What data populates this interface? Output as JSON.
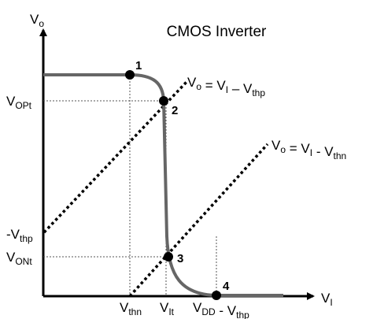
{
  "title": "CMOS Inverter",
  "y_axis_label": {
    "main": "V",
    "sub": "o"
  },
  "x_axis_label": {
    "main": "V",
    "sub": "I"
  },
  "points": [
    "1",
    "2",
    "3",
    "4"
  ],
  "y_labels": [
    [
      {
        "main": "V",
        "sub": "OPt"
      }
    ],
    [
      {
        "main": "-V",
        "sub": "thp"
      }
    ],
    [
      {
        "main": "V",
        "sub": "ONt"
      }
    ]
  ],
  "x_labels": [
    [
      {
        "main": "V",
        "sub": "thn"
      }
    ],
    [
      {
        "main": "V",
        "sub": "It"
      }
    ],
    [
      {
        "main": "V",
        "sub": "DD"
      },
      {
        "main": " - V",
        "sub": "thp"
      }
    ]
  ],
  "line_labels": [
    [
      {
        "main": "V",
        "sub": "o"
      },
      {
        "main": " = V",
        "sub": "I"
      },
      {
        "main": " – V",
        "sub": "thp"
      }
    ],
    [
      {
        "main": "V",
        "sub": "o"
      },
      {
        "main": " = V",
        "sub": "I"
      },
      {
        "main": " - V",
        "sub": "thn"
      }
    ]
  ]
}
